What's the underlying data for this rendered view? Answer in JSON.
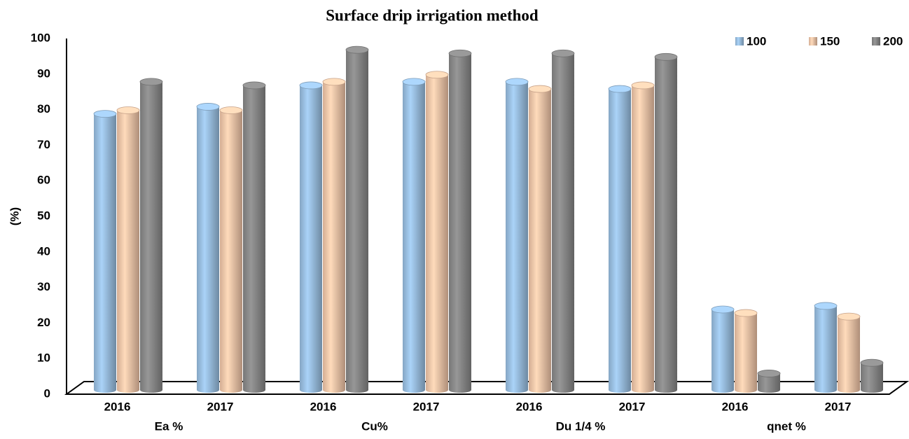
{
  "chart_data": {
    "type": "bar",
    "title": "Surface drip irrigation method",
    "y_label": "(%)",
    "categories": [
      "2016",
      "2017",
      "2016",
      "2017",
      "2016",
      "2017",
      "2016",
      "2017"
    ],
    "groups": [
      "Ea %",
      "Cu%",
      "Du 1/4 %",
      "qnet %"
    ],
    "series": [
      {
        "name": "100",
        "color": "#9dc3e6",
        "values": [
          80,
          82,
          88,
          89,
          89,
          87,
          25,
          26
        ]
      },
      {
        "name": "150",
        "color": "#f8cbad",
        "values": [
          81,
          81,
          89,
          91,
          87,
          88,
          24,
          23
        ]
      },
      {
        "name": "200",
        "color": "#8c8c8c",
        "values": [
          89,
          88,
          98,
          97,
          97,
          96,
          7,
          10
        ]
      }
    ],
    "ylim": [
      0,
      100
    ],
    "yticks": [
      0,
      10,
      20,
      30,
      40,
      50,
      60,
      70,
      80,
      90,
      100
    ],
    "legend": "top-right"
  }
}
